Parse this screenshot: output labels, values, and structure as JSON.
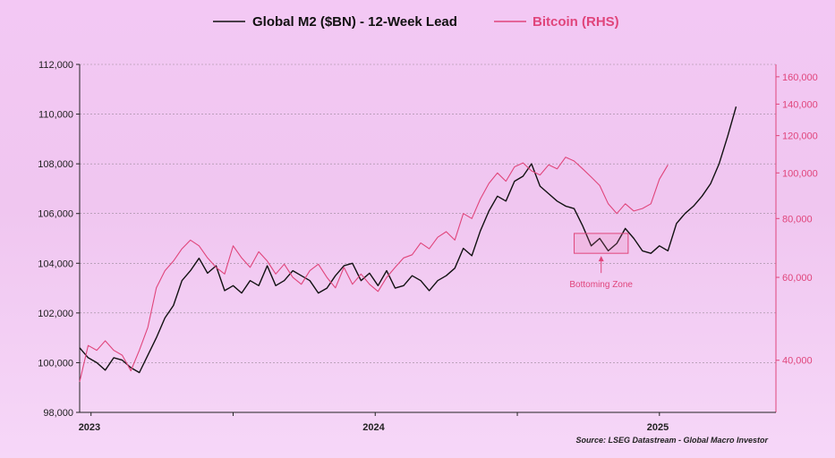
{
  "chart_data": {
    "type": "line",
    "title": "",
    "legend": {
      "placement": "top-center",
      "entries": [
        {
          "name": "Global M2 ($BN) - 12-Week Lead",
          "color": "#111111"
        },
        {
          "name": "Bitcoin (RHS)",
          "color": "#e0457b"
        }
      ]
    },
    "x_axis": {
      "ticks": [
        "2023",
        "2024",
        "2025"
      ],
      "range_years": [
        2023.0,
        2025.45
      ]
    },
    "y_left": {
      "ticks": [
        "98,000",
        "100,000",
        "102,000",
        "104,000",
        "106,000",
        "108,000",
        "110,000",
        "112,000"
      ],
      "ylim": [
        98000,
        112000
      ]
    },
    "y_right": {
      "scale": "log",
      "ticks": [
        "40,000",
        "60,000",
        "80,000",
        "100,000",
        "120,000",
        "140,000",
        "160,000"
      ],
      "ylim": [
        31000,
        170000
      ]
    },
    "grid": true,
    "series": [
      {
        "name": "Global M2 ($BN) - 12-Week Lead",
        "axis": "left",
        "color": "#111111",
        "x": [
          2023.0,
          2023.03,
          2023.06,
          2023.09,
          2023.12,
          2023.15,
          2023.18,
          2023.21,
          2023.24,
          2023.27,
          2023.3,
          2023.33,
          2023.36,
          2023.39,
          2023.42,
          2023.45,
          2023.48,
          2023.51,
          2023.54,
          2023.57,
          2023.6,
          2023.63,
          2023.66,
          2023.69,
          2023.72,
          2023.75,
          2023.78,
          2023.81,
          2023.84,
          2023.87,
          2023.9,
          2023.93,
          2023.96,
          2023.99,
          2024.02,
          2024.05,
          2024.08,
          2024.11,
          2024.14,
          2024.17,
          2024.2,
          2024.23,
          2024.26,
          2024.29,
          2024.32,
          2024.35,
          2024.38,
          2024.41,
          2024.44,
          2024.47,
          2024.5,
          2024.53,
          2024.56,
          2024.59,
          2024.62,
          2024.65,
          2024.68,
          2024.71,
          2024.74,
          2024.77,
          2024.8,
          2024.83,
          2024.86,
          2024.89,
          2024.92,
          2024.95,
          2024.98,
          2025.01,
          2025.04,
          2025.07,
          2025.1,
          2025.13,
          2025.16,
          2025.19,
          2025.22,
          2025.25,
          2025.28,
          2025.31
        ],
        "values": [
          100600,
          100200,
          100000,
          99700,
          100200,
          100100,
          99800,
          99600,
          100300,
          101000,
          101800,
          102300,
          103300,
          103700,
          104200,
          103600,
          103900,
          102900,
          103100,
          102800,
          103300,
          103100,
          103900,
          103100,
          103300,
          103700,
          103500,
          103300,
          102800,
          103000,
          103500,
          103900,
          104000,
          103300,
          103600,
          103100,
          103700,
          103000,
          103100,
          103500,
          103300,
          102900,
          103300,
          103500,
          103800,
          104600,
          104300,
          105300,
          106100,
          106700,
          106500,
          107300,
          107500,
          108000,
          107100,
          106800,
          106500,
          106300,
          106200,
          105500,
          104700,
          105000,
          104500,
          104800,
          105400,
          105000,
          104500,
          104400,
          104700,
          104500,
          105600,
          106000,
          106300,
          106700,
          107200,
          108000,
          109100,
          110300
        ]
      },
      {
        "name": "Bitcoin (RHS)",
        "axis": "right",
        "color": "#e0457b",
        "x": [
          2023.0,
          2023.03,
          2023.06,
          2023.09,
          2023.12,
          2023.15,
          2023.18,
          2023.21,
          2023.24,
          2023.27,
          2023.3,
          2023.33,
          2023.36,
          2023.39,
          2023.42,
          2023.45,
          2023.48,
          2023.51,
          2023.54,
          2023.57,
          2023.6,
          2023.63,
          2023.66,
          2023.69,
          2023.72,
          2023.75,
          2023.78,
          2023.81,
          2023.84,
          2023.87,
          2023.9,
          2023.93,
          2023.96,
          2023.99,
          2024.02,
          2024.05,
          2024.08,
          2024.11,
          2024.14,
          2024.17,
          2024.2,
          2024.23,
          2024.26,
          2024.29,
          2024.32,
          2024.35,
          2024.38,
          2024.41,
          2024.44,
          2024.47,
          2024.5,
          2024.53,
          2024.56,
          2024.59,
          2024.62,
          2024.65,
          2024.68,
          2024.71,
          2024.74,
          2024.77,
          2024.8,
          2024.83,
          2024.86,
          2024.89,
          2024.92,
          2024.95,
          2024.98,
          2025.01,
          2025.04,
          2025.07
        ],
        "values": [
          36000,
          43000,
          42000,
          44000,
          42000,
          41000,
          38000,
          42000,
          47000,
          57000,
          62000,
          65000,
          69000,
          72000,
          70000,
          66000,
          63000,
          61000,
          70000,
          66000,
          63000,
          68000,
          65000,
          61000,
          64000,
          60000,
          58000,
          62000,
          64000,
          60000,
          57000,
          63000,
          58000,
          61000,
          58000,
          56000,
          60000,
          63000,
          66000,
          67000,
          71000,
          69000,
          73000,
          75000,
          72000,
          82000,
          80000,
          88000,
          95000,
          100000,
          96000,
          103000,
          105000,
          101000,
          99000,
          104000,
          102000,
          108000,
          106000,
          102000,
          98000,
          94000,
          86000,
          82000,
          86000,
          83000,
          84000,
          86000,
          97000,
          104000
        ]
      }
    ],
    "annotations": [
      {
        "text": "Bottoming Zone",
        "x_range": [
          2024.74,
          2024.93
        ],
        "y_range": [
          104400,
          105200
        ]
      }
    ],
    "source": "Source: LSEG Datastream - Global Macro Investor"
  }
}
